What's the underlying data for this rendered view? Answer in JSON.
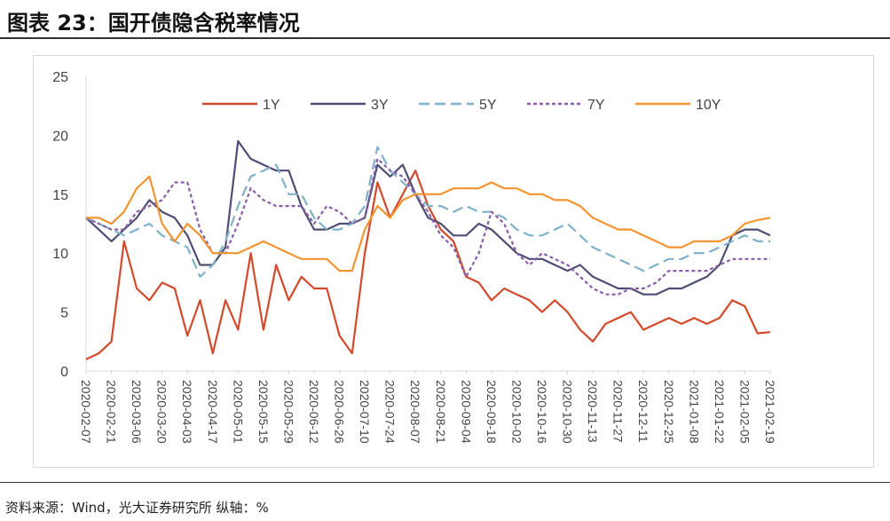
{
  "title": "图表 23：国开债隐含税率情况",
  "source": "资料来源：Wind，光大证券研究所 纵轴：%",
  "chart_data": {
    "type": "line",
    "title": "图表 23：国开债隐含税率情况",
    "xlabel": "",
    "ylabel": "%",
    "ylim": [
      0,
      25
    ],
    "yticks": [
      "0",
      "5",
      "10",
      "15",
      "20",
      "25"
    ],
    "x_tick_labels": [
      "2020-02-07",
      "2020-02-21",
      "2020-03-06",
      "2020-03-20",
      "2020-04-03",
      "2020-04-17",
      "2020-05-01",
      "2020-05-15",
      "2020-05-29",
      "2020-06-12",
      "2020-06-26",
      "2020-07-10",
      "2020-07-24",
      "2020-08-07",
      "2020-08-21",
      "2020-09-04",
      "2020-09-18",
      "2020-10-02",
      "2020-10-16",
      "2020-10-30",
      "2020-11-13",
      "2020-11-27",
      "2020-12-11",
      "2020-12-25",
      "2021-01-08",
      "2021-01-22",
      "2021-02-05",
      "2021-02-19"
    ],
    "x_note": "weekly samples from 2020-02-07 to 2021-02-19",
    "legend_position": "top",
    "series": [
      {
        "name": "1Y",
        "color": "#d24a2b",
        "dash": "solid",
        "values": [
          1,
          1.5,
          2.5,
          11,
          7,
          6,
          7.5,
          7,
          3,
          6,
          1.5,
          6,
          3.5,
          10,
          3.5,
          9,
          6,
          8,
          7,
          7,
          3,
          1.5,
          10,
          16,
          13,
          15,
          17,
          14,
          12,
          11,
          8,
          7.5,
          6,
          7,
          6.5,
          6,
          5,
          6,
          5,
          3.5,
          2.5,
          4,
          4.5,
          5,
          3.5,
          4,
          4.5,
          4,
          4.5,
          4,
          4.5,
          6,
          5.5,
          3.2,
          3.3
        ]
      },
      {
        "name": "3Y",
        "color": "#4e4e74",
        "dash": "solid",
        "values": [
          13,
          12,
          11,
          12,
          13,
          14.5,
          13.5,
          13,
          11.5,
          9,
          9,
          10.5,
          19.5,
          18,
          17.5,
          17,
          17,
          14,
          12,
          12,
          12.5,
          12.5,
          13,
          17.5,
          16.5,
          17.5,
          15,
          13,
          12.5,
          11.5,
          11.5,
          12.5,
          12,
          11,
          10,
          9.5,
          9.5,
          9,
          8.5,
          9,
          8,
          7.5,
          7,
          7,
          6.5,
          6.5,
          7,
          7,
          7.5,
          8,
          9,
          11.5,
          12,
          12,
          11.5
        ]
      },
      {
        "name": "5Y",
        "color": "#7fb1c9",
        "dash": "long-dash",
        "values": [
          13,
          12.5,
          12,
          11.5,
          12,
          12.5,
          11.5,
          11,
          10.5,
          8,
          9,
          11,
          14,
          16.5,
          17,
          17.5,
          15,
          15,
          13,
          12,
          12,
          12.5,
          14,
          19,
          17,
          16,
          15,
          14,
          14,
          13.5,
          14,
          13.5,
          13.5,
          13,
          12,
          11.5,
          11.5,
          12,
          12.5,
          11.5,
          10.5,
          10,
          9.5,
          9,
          8.5,
          9,
          9.5,
          9.5,
          10,
          10,
          10.5,
          11,
          11.5,
          11,
          11
        ]
      },
      {
        "name": "7Y",
        "color": "#8a5ea6",
        "dash": "dotted",
        "values": [
          13,
          12.5,
          12,
          12,
          13.5,
          14,
          14.5,
          16,
          16,
          12,
          10,
          10,
          12.5,
          15.5,
          14.5,
          14,
          14,
          14,
          12.5,
          14,
          13.5,
          12.5,
          13,
          18,
          17,
          16.5,
          15,
          13.5,
          11.5,
          10.5,
          8,
          10,
          13.5,
          12.5,
          10,
          9,
          10,
          9.5,
          9,
          8,
          7,
          6.5,
          6.5,
          7,
          7,
          7.5,
          8.5,
          8.5,
          8.5,
          8.5,
          9,
          9.5,
          9.5,
          9.5,
          9.5
        ]
      },
      {
        "name": "10Y",
        "color": "#f49431",
        "dash": "solid",
        "values": [
          13,
          13,
          12.5,
          13.5,
          15.5,
          16.5,
          12.5,
          11,
          12.5,
          11.5,
          10,
          10,
          10,
          10.5,
          11,
          10.5,
          10,
          9.5,
          9.5,
          9.5,
          8.5,
          8.5,
          12,
          14,
          13,
          14.5,
          15,
          15,
          15,
          15.5,
          15.5,
          15.5,
          16,
          15.5,
          15.5,
          15,
          15,
          14.5,
          14.5,
          14,
          13,
          12.5,
          12,
          12,
          11.5,
          11,
          10.5,
          10.5,
          11,
          11,
          11,
          11.5,
          12.5,
          12.8,
          13
        ]
      }
    ]
  }
}
